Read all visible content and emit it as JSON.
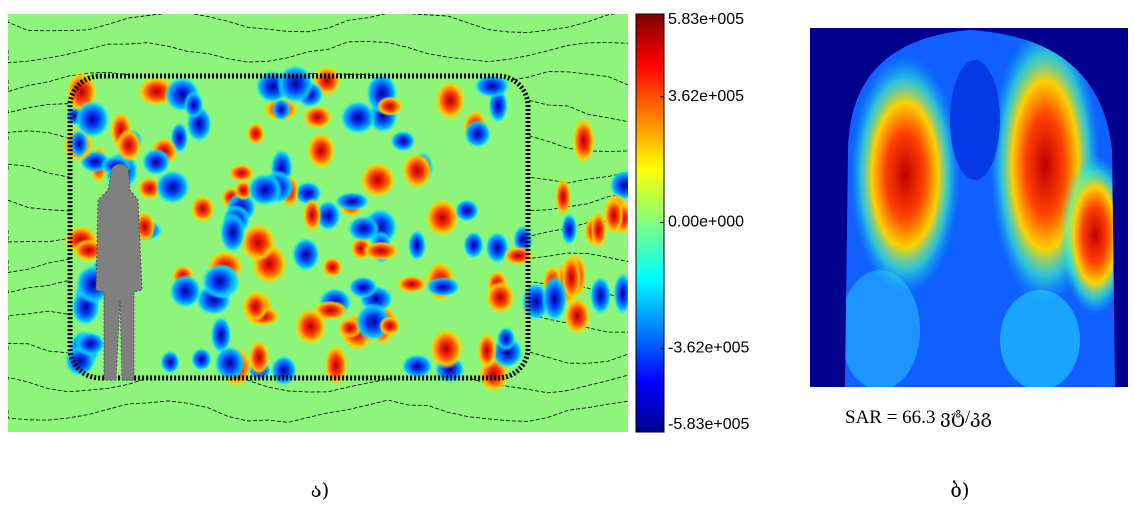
{
  "panels": [
    {
      "caption": "ა)",
      "colorbar": {
        "lim": [
          -583000,
          583000
        ],
        "ticks": [
          {
            "value": 583000,
            "label": "5.83e+005"
          },
          {
            "value": 362000,
            "label": "3.62e+005"
          },
          {
            "value": 0,
            "label": "0.00e+000"
          },
          {
            "value": -362000,
            "label": "-3.62e+005"
          },
          {
            "value": -583000,
            "label": "-5.83e+005"
          }
        ]
      }
    },
    {
      "caption": "ბ)",
      "annotation": "SAR = 66.3 ვტ/კგ"
    }
  ]
}
